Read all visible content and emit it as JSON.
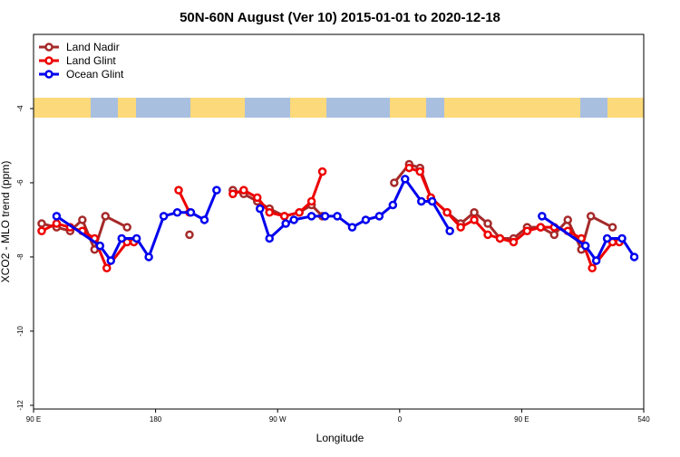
{
  "chart_data": {
    "type": "line",
    "title": "50N-60N August (Ver 10)   2015-01-01 to 2020-12-18",
    "x_label": "Longitude",
    "y_label": "XCO2 - MLO trend (ppm)",
    "xlim": [
      90,
      540
    ],
    "ylim": [
      -12.1,
      -2.0
    ],
    "xticks": [
      {
        "value": 90,
        "label": "90 E"
      },
      180,
      {
        "value": 270,
        "label": "90 W"
      },
      {
        "value": 360,
        "label": "0"
      },
      {
        "value": 450,
        "label": "90 E"
      },
      540
    ],
    "yticks": [
      -4,
      -6,
      -8,
      -10,
      -12
    ],
    "legend": "top-left",
    "series": [
      {
        "name": "Land Nadir",
        "color": "#a52a2a",
        "x": [
          96,
          107,
          117,
          126,
          135,
          143,
          159,
          null,
          205,
          null,
          237,
          245,
          255,
          264,
          275,
          286,
          295,
          303,
          null,
          356,
          367,
          375,
          383,
          395,
          405,
          415,
          425,
          434,
          444,
          454,
          464,
          474,
          484,
          494,
          501,
          517
        ],
        "values": [
          -7.1,
          -7.2,
          -7.3,
          -7.0,
          -7.8,
          -6.9,
          -7.2,
          null,
          -7.4,
          null,
          -6.2,
          -6.3,
          -6.5,
          -6.7,
          -6.9,
          -6.8,
          -6.6,
          -6.9,
          null,
          -6.0,
          -5.5,
          -5.6,
          -6.4,
          -6.8,
          -7.1,
          -6.8,
          -7.1,
          -7.5,
          -7.5,
          -7.2,
          -7.2,
          -7.4,
          -7.0,
          -7.8,
          -6.9,
          -7.2
        ]
      },
      {
        "name": "Land Glint",
        "color": "#ee0000",
        "x": [
          96,
          107,
          117,
          126,
          135,
          144,
          159,
          164,
          null,
          197,
          205,
          null,
          237,
          245,
          255,
          264,
          275,
          286,
          295,
          303,
          null,
          367,
          375,
          383,
          395,
          405,
          415,
          425,
          434,
          444,
          454,
          464,
          474,
          484,
          494,
          502,
          517,
          522
        ],
        "values": [
          -7.3,
          -7.1,
          -7.2,
          -7.3,
          -7.5,
          -8.3,
          -7.6,
          -7.6,
          null,
          -6.2,
          -6.8,
          null,
          -6.3,
          -6.2,
          -6.4,
          -6.8,
          -6.9,
          -6.8,
          -6.5,
          -5.7,
          null,
          -5.6,
          -5.7,
          -6.4,
          -6.8,
          -7.2,
          -7.0,
          -7.4,
          -7.5,
          -7.6,
          -7.3,
          -7.2,
          -7.2,
          -7.3,
          -7.5,
          -8.3,
          -7.6,
          -7.6
        ]
      },
      {
        "name": "Ocean Glint",
        "color": "#0000ee",
        "x": [
          107,
          139,
          147,
          155,
          166,
          175,
          186,
          196,
          206,
          216,
          225,
          null,
          257,
          264,
          276,
          282,
          295,
          305,
          314,
          325,
          335,
          345,
          355,
          364,
          376,
          384,
          397,
          null,
          465,
          497,
          505,
          513,
          524,
          533
        ],
        "values": [
          -6.9,
          -7.7,
          -8.1,
          -7.5,
          -7.5,
          -8.0,
          -6.9,
          -6.8,
          -6.8,
          -7.0,
          -6.2,
          null,
          -6.7,
          -7.5,
          -7.1,
          -7.0,
          -6.9,
          -6.9,
          -6.9,
          -7.2,
          -7.0,
          -6.9,
          -6.6,
          -5.9,
          -6.5,
          -6.5,
          -7.3,
          null,
          -6.9,
          -7.7,
          -8.1,
          -7.5,
          -7.5,
          -8.0
        ]
      }
    ]
  }
}
